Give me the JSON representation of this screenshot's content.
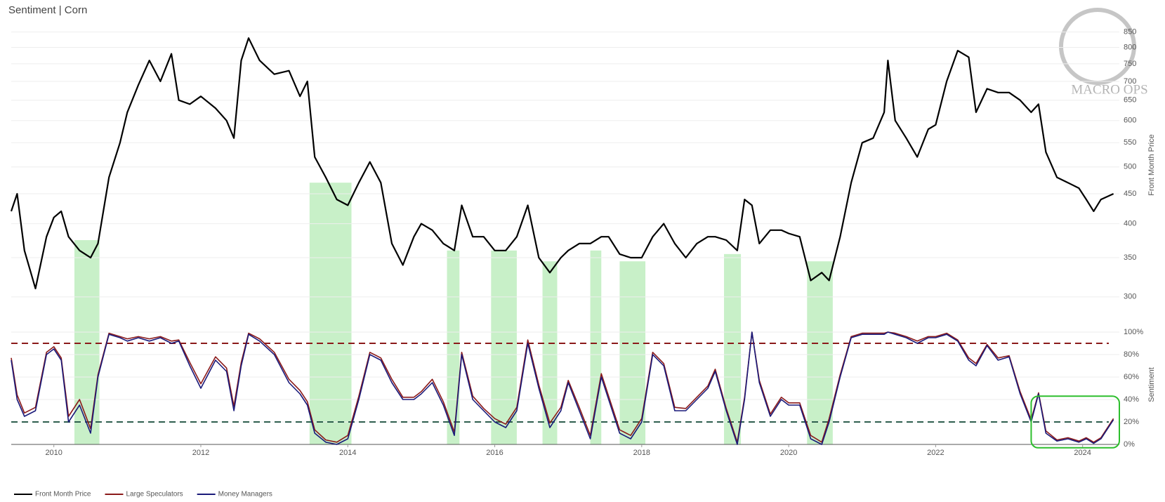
{
  "chart_data": {
    "type": "line",
    "title": "Sentiment | Corn",
    "watermark": "MACRO OPS",
    "ylabel": "Front Month Price",
    "y2label": "Sentiment",
    "xlim": [
      2009.42,
      2024.5
    ],
    "xticks": [
      2010,
      2012,
      2014,
      2016,
      2018,
      2020,
      2022,
      2024
    ],
    "ylog": true,
    "ylim": [
      270,
      880
    ],
    "yticks": [
      300,
      350,
      400,
      450,
      500,
      550,
      600,
      650,
      700,
      750,
      800,
      850
    ],
    "y2lim": [
      0,
      100
    ],
    "y2ticks": [
      {
        "value": 0,
        "label": "0%"
      },
      {
        "value": 20,
        "label": "20%"
      },
      {
        "value": 40,
        "label": "40%"
      },
      {
        "value": 60,
        "label": "60%"
      },
      {
        "value": 80,
        "label": "80%"
      },
      {
        "value": 100,
        "label": "100%"
      }
    ],
    "grid": true,
    "legend": "bottom-left",
    "x": [
      2009.42,
      2009.5,
      2009.6,
      2009.75,
      2009.9,
      2010.0,
      2010.1,
      2010.2,
      2010.35,
      2010.5,
      2010.6,
      2010.75,
      2010.9,
      2011.0,
      2011.15,
      2011.3,
      2011.45,
      2011.6,
      2011.7,
      2011.85,
      2012.0,
      2012.2,
      2012.35,
      2012.45,
      2012.55,
      2012.65,
      2012.8,
      2013.0,
      2013.2,
      2013.35,
      2013.45,
      2013.55,
      2013.7,
      2013.85,
      2014.0,
      2014.15,
      2014.3,
      2014.45,
      2014.6,
      2014.75,
      2014.9,
      2015.0,
      2015.15,
      2015.3,
      2015.45,
      2015.55,
      2015.7,
      2015.85,
      2016.0,
      2016.15,
      2016.3,
      2016.45,
      2016.6,
      2016.75,
      2016.9,
      2017.0,
      2017.15,
      2017.3,
      2017.45,
      2017.55,
      2017.7,
      2017.85,
      2018.0,
      2018.15,
      2018.3,
      2018.45,
      2018.6,
      2018.75,
      2018.9,
      2019.0,
      2019.15,
      2019.3,
      2019.4,
      2019.5,
      2019.6,
      2019.75,
      2019.9,
      2020.0,
      2020.15,
      2020.3,
      2020.45,
      2020.55,
      2020.7,
      2020.85,
      2021.0,
      2021.15,
      2021.3,
      2021.35,
      2021.45,
      2021.6,
      2021.75,
      2021.9,
      2022.0,
      2022.15,
      2022.3,
      2022.45,
      2022.55,
      2022.7,
      2022.85,
      2023.0,
      2023.15,
      2023.3,
      2023.4,
      2023.5,
      2023.65,
      2023.8,
      2023.95,
      2024.05,
      2024.15,
      2024.25,
      2024.42
    ],
    "series": [
      {
        "name": "Front Month Price",
        "color": "#000000",
        "axis": "y",
        "values": [
          420,
          450,
          360,
          310,
          380,
          410,
          420,
          380,
          360,
          350,
          370,
          480,
          550,
          620,
          690,
          760,
          700,
          780,
          650,
          640,
          660,
          630,
          600,
          560,
          760,
          830,
          760,
          720,
          730,
          660,
          700,
          520,
          480,
          440,
          430,
          470,
          510,
          470,
          370,
          340,
          380,
          400,
          390,
          370,
          360,
          430,
          380,
          380,
          360,
          360,
          380,
          430,
          350,
          330,
          350,
          360,
          370,
          370,
          380,
          380,
          355,
          350,
          350,
          380,
          400,
          370,
          350,
          370,
          380,
          380,
          375,
          360,
          440,
          430,
          370,
          390,
          390,
          385,
          380,
          320,
          330,
          320,
          380,
          470,
          550,
          560,
          620,
          760,
          600,
          560,
          520,
          580,
          590,
          700,
          790,
          770,
          620,
          680,
          670,
          670,
          650,
          620,
          640,
          530,
          480,
          470,
          460,
          440,
          420,
          440,
          450
        ]
      },
      {
        "name": "Large Speculators",
        "color": "#8b1a1a",
        "axis": "y2",
        "values": [
          77,
          44,
          28,
          33,
          82,
          87,
          77,
          25,
          40,
          14,
          62,
          99,
          96,
          94,
          96,
          94,
          96,
          92,
          93,
          73,
          54,
          78,
          68,
          34,
          73,
          99,
          94,
          82,
          58,
          48,
          38,
          13,
          4,
          2,
          8,
          43,
          82,
          77,
          58,
          42,
          42,
          47,
          58,
          38,
          11,
          82,
          43,
          32,
          23,
          18,
          33,
          93,
          53,
          19,
          33,
          57,
          33,
          8,
          63,
          43,
          13,
          8,
          23,
          82,
          72,
          33,
          32,
          42,
          52,
          67,
          32,
          2,
          42,
          100,
          57,
          27,
          42,
          37,
          37,
          8,
          2,
          23,
          62,
          96,
          99,
          99,
          99,
          100,
          99,
          96,
          92,
          96,
          96,
          99,
          93,
          77,
          72,
          89,
          77,
          79,
          47,
          22,
          46,
          12,
          4,
          6,
          3,
          6,
          2,
          6,
          23
        ]
      },
      {
        "name": "Money Managers",
        "color": "#1a1a7a",
        "axis": "y2",
        "values": [
          75,
          40,
          25,
          30,
          80,
          85,
          75,
          20,
          35,
          10,
          60,
          98,
          95,
          92,
          95,
          92,
          95,
          90,
          92,
          70,
          50,
          75,
          65,
          30,
          70,
          98,
          92,
          80,
          55,
          45,
          35,
          10,
          2,
          0,
          5,
          40,
          80,
          75,
          55,
          40,
          40,
          45,
          55,
          35,
          8,
          80,
          40,
          30,
          20,
          15,
          30,
          90,
          50,
          15,
          30,
          55,
          30,
          5,
          60,
          40,
          10,
          5,
          20,
          80,
          70,
          30,
          30,
          40,
          50,
          65,
          30,
          0,
          40,
          100,
          55,
          25,
          40,
          35,
          35,
          5,
          0,
          20,
          60,
          95,
          98,
          98,
          98,
          100,
          98,
          95,
          90,
          95,
          95,
          98,
          92,
          75,
          70,
          88,
          75,
          78,
          45,
          20,
          45,
          10,
          3,
          5,
          2,
          5,
          1,
          5,
          22
        ]
      }
    ],
    "hlines": [
      {
        "value": 90,
        "color": "#8b1a1a"
      },
      {
        "value": 20,
        "color": "#2e5e4e"
      }
    ],
    "highlight_color": "#c8f0c8",
    "highlights": [
      [
        2010.28,
        2010.62,
        375
      ],
      [
        2013.48,
        2014.05,
        470
      ],
      [
        2015.35,
        2015.52,
        360
      ],
      [
        2015.95,
        2016.3,
        360
      ],
      [
        2016.65,
        2016.85,
        345
      ],
      [
        2017.3,
        2017.45,
        360
      ],
      [
        2017.7,
        2018.05,
        345
      ],
      [
        2019.12,
        2019.35,
        355
      ],
      [
        2020.25,
        2020.6,
        345
      ]
    ],
    "callout": {
      "xlim": [
        2023.3,
        2024.5
      ],
      "y2lim": [
        -3,
        43
      ],
      "color": "#2dbe2d"
    }
  }
}
